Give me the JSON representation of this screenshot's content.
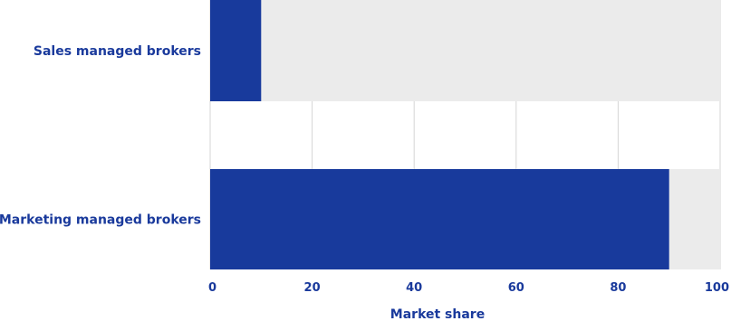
{
  "chart_data": {
    "type": "bar",
    "orientation": "horizontal",
    "categories": [
      "Sales managed brokers",
      "Marketing managed brokers"
    ],
    "series": [
      {
        "values": [
          10,
          90
        ]
      }
    ],
    "background_values": [
      100,
      100
    ],
    "xlabel": "Market share",
    "ylabel": "",
    "xlim": [
      0,
      100
    ],
    "xticks": [
      "0",
      "20",
      "40",
      "60",
      "80",
      "100"
    ],
    "grid": true,
    "colors": {
      "bar": "#183a9c",
      "track": "#ebebeb",
      "grid": "#d6d6d6",
      "text": "#1a3a9c"
    }
  }
}
